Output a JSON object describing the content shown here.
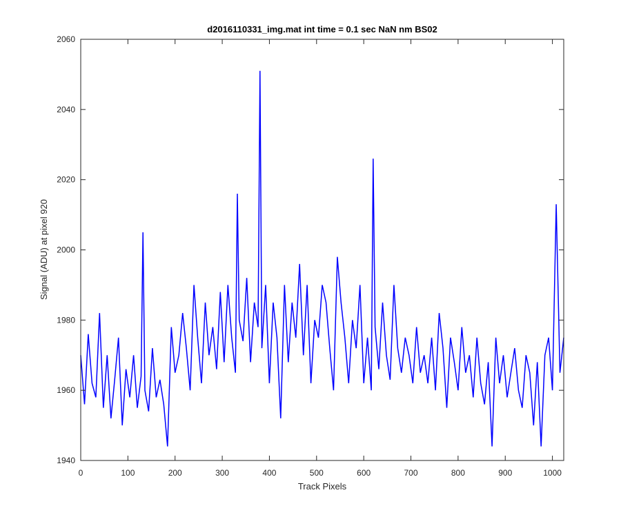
{
  "chart_data": {
    "type": "line",
    "title": "d2016110331_img.mat int time = 0.1 sec  NaN nm BS02",
    "xlabel": "Track Pixels",
    "ylabel": "Signal (ADU) at pixel 920",
    "xlim": [
      0,
      1024
    ],
    "ylim": [
      1940,
      2060
    ],
    "xticks": [
      0,
      100,
      200,
      300,
      400,
      500,
      600,
      700,
      800,
      900,
      1000
    ],
    "yticks": [
      1940,
      1960,
      1980,
      2000,
      2020,
      2040,
      2060
    ],
    "grid": false,
    "legend": "none",
    "series": [
      {
        "color": "#0000ff",
        "x": [
          0,
          8,
          16,
          24,
          32,
          40,
          48,
          56,
          64,
          72,
          80,
          88,
          96,
          104,
          112,
          120,
          128,
          132,
          136,
          144,
          152,
          160,
          168,
          176,
          184,
          192,
          200,
          208,
          216,
          224,
          232,
          240,
          248,
          256,
          264,
          272,
          280,
          288,
          296,
          304,
          312,
          320,
          328,
          332,
          336,
          344,
          352,
          360,
          368,
          376,
          380,
          384,
          392,
          400,
          408,
          416,
          424,
          432,
          440,
          448,
          456,
          464,
          472,
          480,
          488,
          496,
          504,
          512,
          520,
          528,
          536,
          544,
          552,
          560,
          568,
          576,
          584,
          592,
          600,
          608,
          616,
          620,
          624,
          632,
          640,
          648,
          656,
          664,
          672,
          680,
          688,
          696,
          704,
          712,
          720,
          728,
          736,
          744,
          752,
          760,
          768,
          776,
          784,
          792,
          800,
          808,
          816,
          824,
          832,
          840,
          848,
          856,
          864,
          872,
          880,
          888,
          896,
          904,
          912,
          920,
          928,
          936,
          944,
          952,
          960,
          968,
          976,
          984,
          992,
          1000,
          1008,
          1016,
          1024
        ],
        "y": [
          1970,
          1956,
          1976,
          1962,
          1958,
          1982,
          1955,
          1970,
          1952,
          1963,
          1975,
          1950,
          1966,
          1958,
          1970,
          1955,
          1964,
          2005,
          1960,
          1954,
          1972,
          1958,
          1963,
          1956,
          1944,
          1978,
          1965,
          1970,
          1982,
          1972,
          1960,
          1990,
          1975,
          1962,
          1985,
          1970,
          1978,
          1966,
          1988,
          1968,
          1990,
          1975,
          1965,
          2016,
          1980,
          1974,
          1992,
          1968,
          1985,
          1978,
          2051,
          1972,
          1990,
          1962,
          1985,
          1975,
          1952,
          1990,
          1968,
          1985,
          1975,
          1996,
          1970,
          1990,
          1962,
          1980,
          1975,
          1990,
          1985,
          1972,
          1960,
          1998,
          1985,
          1975,
          1962,
          1980,
          1972,
          1990,
          1962,
          1975,
          1960,
          2026,
          1978,
          1966,
          1985,
          1970,
          1963,
          1990,
          1972,
          1965,
          1975,
          1970,
          1962,
          1978,
          1965,
          1970,
          1962,
          1975,
          1960,
          1982,
          1972,
          1955,
          1975,
          1968,
          1960,
          1978,
          1965,
          1970,
          1958,
          1975,
          1962,
          1956,
          1968,
          1944,
          1975,
          1962,
          1970,
          1958,
          1965,
          1972,
          1960,
          1955,
          1970,
          1965,
          1950,
          1968,
          1944,
          1970,
          1975,
          1960,
          2013,
          1965,
          1975
        ]
      }
    ]
  }
}
